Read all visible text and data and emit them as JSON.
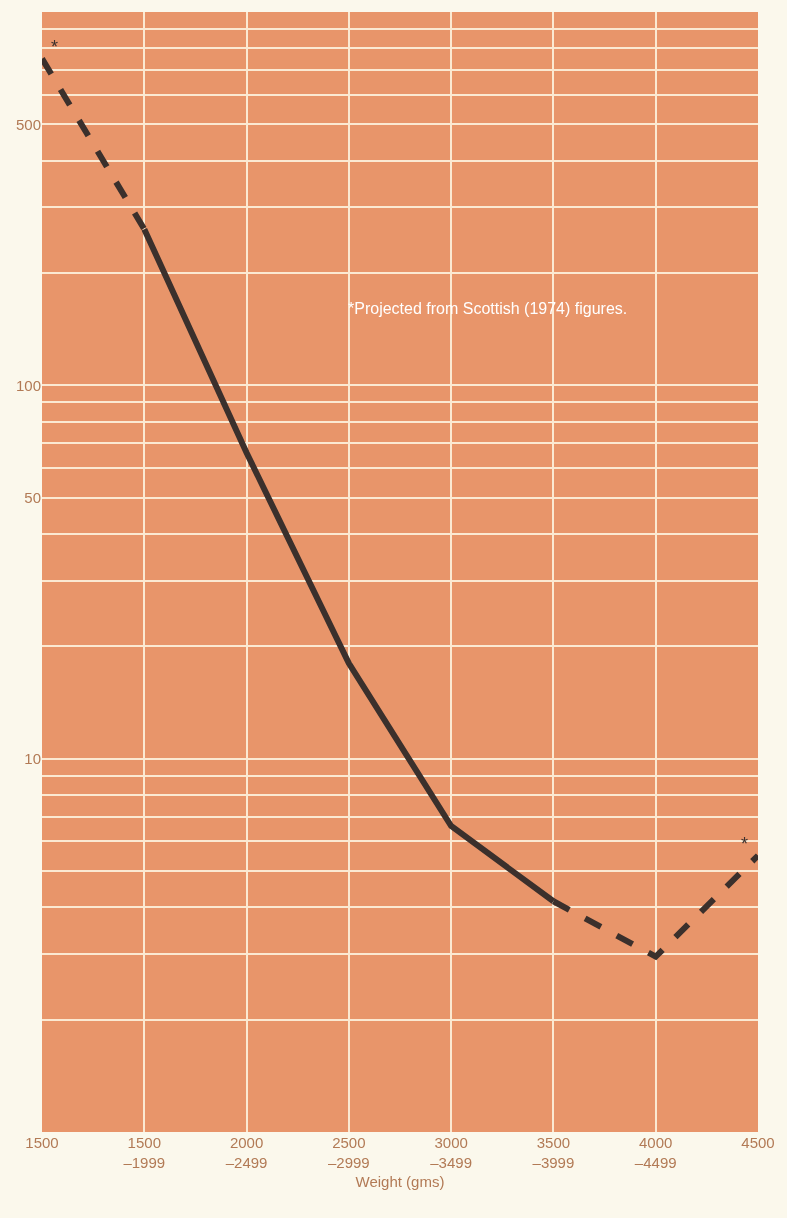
{
  "chart_data": {
    "type": "line",
    "xlabel": "Weight (gms)",
    "categories": [
      "1500",
      "1500\n–1999",
      "2000\n–2499",
      "2500\n–2999",
      "3000\n–3499",
      "3500\n–3999",
      "4000\n–4499",
      "4500"
    ],
    "series": [
      {
        "color": "#3b302c",
        "line_style": "dashed",
        "values": [
          750,
          262,
          null,
          null,
          null,
          4.15,
          2.95,
          5.5
        ]
      },
      {
        "color": "#3b302c",
        "line_style": "solid",
        "values": [
          null,
          262,
          66,
          18,
          6.6,
          4.15,
          null,
          null
        ]
      }
    ],
    "log": "y",
    "ylim": [
      1,
      1000
    ],
    "yticks": [
      {
        "value": 2,
        "label": null
      },
      {
        "value": 3,
        "label": null
      },
      {
        "value": 4,
        "label": null
      },
      {
        "value": 5,
        "label": null
      },
      {
        "value": 6,
        "label": null
      },
      {
        "value": 7,
        "label": null
      },
      {
        "value": 8,
        "label": null
      },
      {
        "value": 9,
        "label": null
      },
      10,
      {
        "value": 20,
        "label": null
      },
      {
        "value": 30,
        "label": null
      },
      {
        "value": 40,
        "label": null
      },
      50,
      {
        "value": 60,
        "label": null
      },
      {
        "value": 70,
        "label": null
      },
      {
        "value": 80,
        "label": null
      },
      {
        "value": 90,
        "label": null
      },
      100,
      {
        "value": 200,
        "label": null
      },
      {
        "value": 300,
        "label": null
      },
      {
        "value": 400,
        "label": null
      },
      500,
      {
        "value": 600,
        "label": null
      },
      {
        "value": 700,
        "label": null
      },
      {
        "value": 800,
        "label": null
      },
      {
        "value": 900,
        "label": null
      },
      {
        "value": 1000,
        "label": null
      }
    ],
    "grid": true,
    "marker": "none",
    "annotations": [
      "*Projected from Scottish (1974) figures.",
      {
        "text": "*",
        "x": "1500",
        "y": 750
      },
      {
        "text": "*",
        "x": "4500",
        "y": 5.5
      }
    ]
  }
}
